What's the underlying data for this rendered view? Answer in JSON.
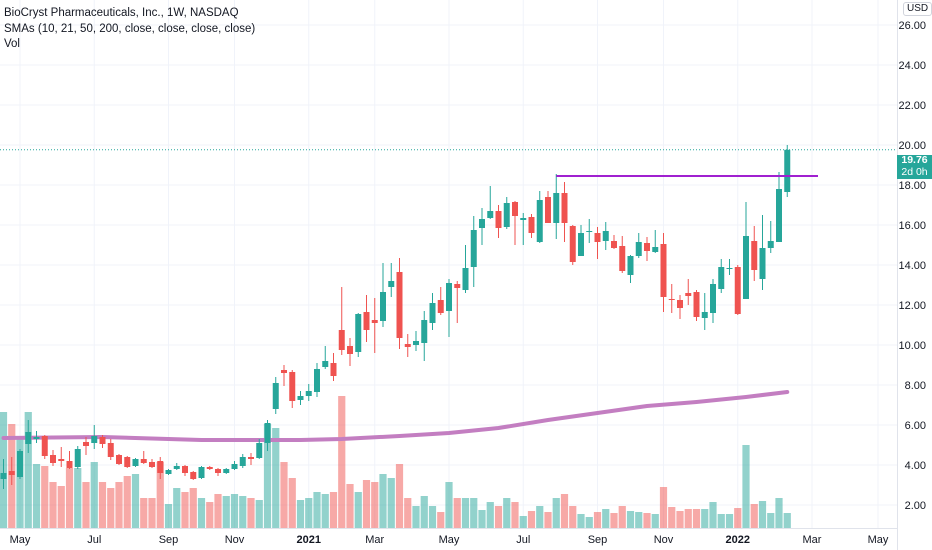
{
  "legend": {
    "title": "BioCryst Pharmaceuticals, Inc., 1W, NASDAQ",
    "sma": "SMAs (10, 21, 50, 200, close, close, close, close)",
    "vol": "Vol"
  },
  "currency": "USD",
  "last_price": {
    "value": "19.76",
    "countdown": "2d 0h"
  },
  "colors": {
    "up": "#26a69a",
    "down": "#ef5350",
    "sma200": "#c37ec1",
    "resistance": "#a020d0",
    "grid": "#f0f3fa"
  },
  "chart_data": {
    "type": "candlestick",
    "title": "BioCryst Pharmaceuticals, Inc., 1W, NASDAQ",
    "ylim": [
      1,
      27
    ],
    "y_ticks": [
      "26.00",
      "24.00",
      "22.00",
      "20.00",
      "18.00",
      "16.00",
      "14.00",
      "12.00",
      "10.00",
      "8.00",
      "6.00",
      "4.00",
      "2.00"
    ],
    "x_ticks": [
      {
        "label": "May",
        "index": 2
      },
      {
        "label": "Jul",
        "index": 11
      },
      {
        "label": "Sep",
        "index": 20
      },
      {
        "label": "Nov",
        "index": 28
      },
      {
        "label": "2021",
        "index": 37
      },
      {
        "label": "Mar",
        "index": 45
      },
      {
        "label": "May",
        "index": 54
      },
      {
        "label": "Jul",
        "index": 63
      },
      {
        "label": "Sep",
        "index": 72
      },
      {
        "label": "Nov",
        "index": 80
      },
      {
        "label": "2022",
        "index": 89
      },
      {
        "label": "Mar",
        "index": 98
      },
      {
        "label": "May",
        "index": 106
      }
    ],
    "candles_fields": [
      "open",
      "high",
      "low",
      "close",
      "volume_m"
    ],
    "candles": [
      [
        3.3,
        4.3,
        2.8,
        3.6,
        5.8
      ],
      [
        3.7,
        4.4,
        3.0,
        3.5,
        5.2
      ],
      [
        3.4,
        4.8,
        3.3,
        4.7,
        4.6
      ],
      [
        5.05,
        6.25,
        4.6,
        5.65,
        5.8
      ],
      [
        5.3,
        5.7,
        5.1,
        5.4,
        3.2
      ],
      [
        5.45,
        5.5,
        4.3,
        4.45,
        3.1
      ],
      [
        4.5,
        4.75,
        3.95,
        4.1,
        2.3
      ],
      [
        4.3,
        4.9,
        3.9,
        4.2,
        2.1
      ],
      [
        4.2,
        4.7,
        3.8,
        3.85,
        3.0
      ],
      [
        3.9,
        4.95,
        3.8,
        4.8,
        3.0
      ],
      [
        5.15,
        5.4,
        4.5,
        4.95,
        2.3
      ],
      [
        5.1,
        6.0,
        4.8,
        5.45,
        3.3
      ],
      [
        5.4,
        5.5,
        4.85,
        5.05,
        2.3
      ],
      [
        5.1,
        5.3,
        4.25,
        4.4,
        2.0
      ],
      [
        4.5,
        4.55,
        4.0,
        4.05,
        2.3
      ],
      [
        4.4,
        4.45,
        3.85,
        3.9,
        2.6
      ],
      [
        3.95,
        4.35,
        3.9,
        4.3,
        2.7
      ],
      [
        4.3,
        4.7,
        4.05,
        4.1,
        1.5
      ],
      [
        4.15,
        4.3,
        3.85,
        3.9,
        1.5
      ],
      [
        4.2,
        4.4,
        3.3,
        3.6,
        3.3
      ],
      [
        3.55,
        3.8,
        3.5,
        3.75,
        1.2
      ],
      [
        3.8,
        4.1,
        3.75,
        3.95,
        2.0
      ],
      [
        3.95,
        4.0,
        3.45,
        3.6,
        1.8
      ],
      [
        3.65,
        3.7,
        3.25,
        3.3,
        2.0
      ],
      [
        3.35,
        3.95,
        3.3,
        3.9,
        1.5
      ],
      [
        3.9,
        3.95,
        3.75,
        3.8,
        1.3
      ],
      [
        3.8,
        3.85,
        3.45,
        3.6,
        1.7
      ],
      [
        3.6,
        3.85,
        3.55,
        3.8,
        1.6
      ],
      [
        3.8,
        4.2,
        3.75,
        4.05,
        1.7
      ],
      [
        3.95,
        4.55,
        3.85,
        4.4,
        1.6
      ],
      [
        4.4,
        4.6,
        4.0,
        4.3,
        1.5
      ],
      [
        4.35,
        5.3,
        4.3,
        5.1,
        1.4
      ],
      [
        5.1,
        6.25,
        4.7,
        6.1,
        5.2
      ],
      [
        6.8,
        8.4,
        6.55,
        8.1,
        5.0
      ],
      [
        8.75,
        9.0,
        7.95,
        8.6,
        3.3
      ],
      [
        8.65,
        8.75,
        6.85,
        7.2,
        2.5
      ],
      [
        7.25,
        7.7,
        7.0,
        7.45,
        1.4
      ],
      [
        7.45,
        8.05,
        7.2,
        7.7,
        1.5
      ],
      [
        7.65,
        9.1,
        7.4,
        8.8,
        1.8
      ],
      [
        8.9,
        9.95,
        8.8,
        9.2,
        1.7
      ],
      [
        9.1,
        9.6,
        8.2,
        8.45,
        1.8
      ],
      [
        10.75,
        12.9,
        9.5,
        9.75,
        6.6
      ],
      [
        9.95,
        10.35,
        8.95,
        9.55,
        2.2
      ],
      [
        9.65,
        11.6,
        9.4,
        11.55,
        1.8
      ],
      [
        11.65,
        12.5,
        10.15,
        10.75,
        2.4
      ],
      [
        11.25,
        12.35,
        9.6,
        11.1,
        2.3
      ],
      [
        11.2,
        14.1,
        10.9,
        12.65,
        2.7
      ],
      [
        12.9,
        14.1,
        12.4,
        13.2,
        2.5
      ],
      [
        13.65,
        14.35,
        9.8,
        10.35,
        3.2
      ],
      [
        10.05,
        10.55,
        9.4,
        9.9,
        1.5
      ],
      [
        10.0,
        10.7,
        9.7,
        10.2,
        1.1
      ],
      [
        10.1,
        11.7,
        9.2,
        11.25,
        1.6
      ],
      [
        11.1,
        12.6,
        10.75,
        12.1,
        1.1
      ],
      [
        12.25,
        12.9,
        11.5,
        11.6,
        0.8
      ],
      [
        11.7,
        13.3,
        10.4,
        13.1,
        2.3
      ],
      [
        13.05,
        13.2,
        11.1,
        12.85,
        1.5
      ],
      [
        12.75,
        15.0,
        12.6,
        13.85,
        1.5
      ],
      [
        13.9,
        16.45,
        12.9,
        15.75,
        1.5
      ],
      [
        15.85,
        16.85,
        15.0,
        16.3,
        0.9
      ],
      [
        16.35,
        17.95,
        16.3,
        16.7,
        1.3
      ],
      [
        16.7,
        17.0,
        15.35,
        15.85,
        1.1
      ],
      [
        15.9,
        17.4,
        15.8,
        17.1,
        1.5
      ],
      [
        17.15,
        17.2,
        15.0,
        16.45,
        1.3
      ],
      [
        16.25,
        16.6,
        15.0,
        16.35,
        0.6
      ],
      [
        16.4,
        16.55,
        15.35,
        15.6,
        0.85
      ],
      [
        15.15,
        17.7,
        15.1,
        17.25,
        1.1
      ],
      [
        17.4,
        17.7,
        16.1,
        16.1,
        0.8
      ],
      [
        16.1,
        18.55,
        15.3,
        17.6,
        1.5
      ],
      [
        17.6,
        18.15,
        15.15,
        16.1,
        1.7
      ],
      [
        15.95,
        16.0,
        14.0,
        14.15,
        1.1
      ],
      [
        14.45,
        16.0,
        14.45,
        15.6,
        0.7
      ],
      [
        15.65,
        16.3,
        15.1,
        15.7,
        0.55
      ],
      [
        15.6,
        15.9,
        14.3,
        15.15,
        0.8
      ],
      [
        15.2,
        16.15,
        14.75,
        15.7,
        0.95
      ],
      [
        15.2,
        15.5,
        14.8,
        14.85,
        0.75
      ],
      [
        14.95,
        15.45,
        13.6,
        13.7,
        1.1
      ],
      [
        13.5,
        14.5,
        13.1,
        14.45,
        0.85
      ],
      [
        14.45,
        15.6,
        14.35,
        15.15,
        0.8
      ],
      [
        15.1,
        15.4,
        14.2,
        14.7,
        0.75
      ],
      [
        14.65,
        15.75,
        14.6,
        14.9,
        0.7
      ],
      [
        15.05,
        15.6,
        11.65,
        12.4,
        2.05
      ],
      [
        12.3,
        13.05,
        11.6,
        12.25,
        1.05
      ],
      [
        12.25,
        12.5,
        11.3,
        11.85,
        0.85
      ],
      [
        12.6,
        13.3,
        12.0,
        12.45,
        0.95
      ],
      [
        12.65,
        12.75,
        11.2,
        11.4,
        0.95
      ],
      [
        11.35,
        12.6,
        10.75,
        11.65,
        0.95
      ],
      [
        11.6,
        13.3,
        11.1,
        13.05,
        1.3
      ],
      [
        12.8,
        14.3,
        12.6,
        13.9,
        0.7
      ],
      [
        13.8,
        14.3,
        13.5,
        13.85,
        0.7
      ],
      [
        13.9,
        14.0,
        11.5,
        11.55,
        1.0
      ],
      [
        12.3,
        17.15,
        12.3,
        15.45,
        4.15
      ],
      [
        15.2,
        15.95,
        13.2,
        13.75,
        1.2
      ],
      [
        13.3,
        16.5,
        12.75,
        14.85,
        1.35
      ],
      [
        14.85,
        16.2,
        14.6,
        15.2,
        0.75
      ],
      [
        15.15,
        18.65,
        15.15,
        17.8,
        1.5
      ],
      [
        17.65,
        20.0,
        17.4,
        19.76,
        0.75
      ]
    ],
    "sma200": [
      [
        0,
        5.35
      ],
      [
        12,
        5.4
      ],
      [
        24,
        5.25
      ],
      [
        36,
        5.25
      ],
      [
        41,
        5.3
      ],
      [
        48,
        5.45
      ],
      [
        54,
        5.6
      ],
      [
        60,
        5.85
      ],
      [
        66,
        6.25
      ],
      [
        72,
        6.6
      ],
      [
        78,
        6.95
      ],
      [
        84,
        7.15
      ],
      [
        90,
        7.4
      ],
      [
        95,
        7.65
      ]
    ],
    "resistance_line": {
      "value": 18.45,
      "from_index": 67
    },
    "current_price": 19.76
  }
}
